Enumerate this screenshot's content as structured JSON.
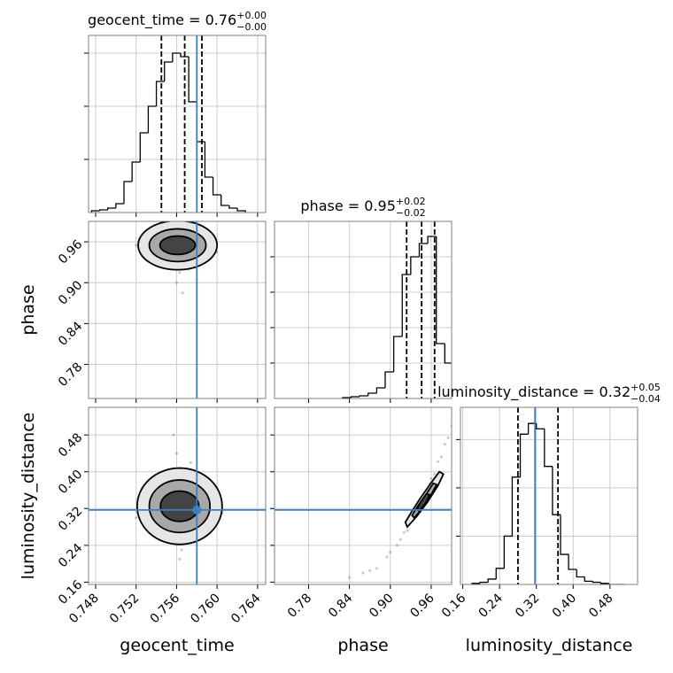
{
  "chart_data": {
    "type": "corner",
    "truth_color": "#3f7fbf",
    "hist_color": "#000000",
    "params": [
      {
        "name": "geocent_time",
        "lim": [
          0.7473,
          0.7648
        ],
        "ticks": [
          0.748,
          0.752,
          0.756,
          {
            "value": 0.76,
            "label": "0.760"
          },
          0.764
        ],
        "title": "geocent_time = 0.76",
        "upper": "+0.00",
        "lower": "−0.00",
        "quantiles": [
          0.7545,
          0.7568,
          0.7585
        ],
        "truth": 0.758,
        "bins": [
          0.7476,
          0.7484,
          0.7492,
          0.75,
          0.7508,
          0.7516,
          0.7524,
          0.7532,
          0.754,
          0.7548,
          0.7556,
          0.7564,
          0.7572,
          0.758,
          0.7588,
          0.7596,
          0.7604,
          0.7612,
          0.762,
          0.7628
        ],
        "counts": [
          2,
          3,
          5,
          10,
          35,
          57,
          90,
          120,
          148,
          170,
          180,
          176,
          125,
          80,
          40,
          20,
          8,
          5,
          2
        ],
        "hist_ylim": [
          0,
          200
        ],
        "hist_ticks": [
          60,
          120,
          180
        ]
      },
      {
        "name": "phase",
        "lim": [
          0.73,
          0.99
        ],
        "ticks": [
          0.78,
          0.84,
          {
            "value": 0.9,
            "label": "0.90"
          },
          0.96
        ],
        "title": "phase = 0.95",
        "upper": "+0.02",
        "lower": "−0.02",
        "quantiles": [
          0.924,
          0.946,
          0.965
        ],
        "bins": [
          0.83,
          0.8425,
          0.855,
          0.8675,
          0.88,
          0.8925,
          0.905,
          0.9175,
          0.93,
          0.9425,
          0.955,
          0.9675,
          0.98,
          0.9925,
          1.005
        ],
        "counts": [
          1,
          2,
          3,
          6,
          12,
          30,
          70,
          140,
          160,
          175,
          183,
          62,
          40,
          5
        ],
        "hist_ylim": [
          0,
          200
        ],
        "hist_ticks": [
          40,
          80,
          120,
          160
        ]
      },
      {
        "name": "luminosity_distance",
        "lim": [
          0.155,
          0.54
        ],
        "ticks": [
          0.16,
          0.24,
          0.32,
          {
            "value": 0.4,
            "label": "0.40"
          },
          0.48
        ],
        "title": "luminosity_distance = 0.32",
        "upper": "+0.05",
        "lower": "−0.04",
        "quantiles": [
          0.28,
          0.367
        ],
        "truth": 0.317,
        "bins": [
          0.18,
          0.1975,
          0.215,
          0.2325,
          0.25,
          0.2675,
          0.285,
          0.3025,
          0.32,
          0.3375,
          0.355,
          0.3725,
          0.39,
          0.4075,
          0.425,
          0.4425,
          0.46,
          0.4775,
          0.495,
          0.5125
        ],
        "counts": [
          1,
          2,
          5,
          15,
          45,
          100,
          140,
          150,
          145,
          110,
          65,
          28,
          14,
          7,
          3,
          2,
          1,
          0,
          0
        ],
        "hist_ylim": [
          0,
          165
        ],
        "hist_ticks": [
          45,
          90,
          135
        ]
      }
    ],
    "pairs": [
      {
        "x": [
          0.7535,
          0.7542,
          0.755,
          0.7556,
          0.756,
          0.7565,
          0.757,
          0.7575,
          0.7582,
          0.759,
          0.7548,
          0.7572,
          0.756,
          0.7555,
          0.7585,
          0.753,
          0.7595,
          0.7566,
          0.7552,
          0.7578,
          0.752,
          0.76,
          0.7563,
          0.7558,
          0.7569
        ],
        "y": [
          0.958,
          0.945,
          0.965,
          0.93,
          0.97,
          0.95,
          0.94,
          0.962,
          0.952,
          0.948,
          0.975,
          0.92,
          0.9,
          0.955,
          0.935,
          0.95,
          0.96,
          0.885,
          0.942,
          0.968,
          0.955,
          0.945,
          0.915,
          0.978,
          0.958
        ],
        "ellipses": [
          {
            "x": 0.7561,
            "y": 0.955,
            "rx": 0.0039,
            "ry": 0.036
          },
          {
            "x": 0.7561,
            "y": 0.955,
            "rx": 0.0028,
            "ry": 0.024
          },
          {
            "x": 0.7561,
            "y": 0.955,
            "rx": 0.00175,
            "ry": 0.0135
          }
        ]
      },
      {
        "x": [
          0.754,
          0.7548,
          0.7556,
          0.7562,
          0.7568,
          0.7575,
          0.7583,
          0.759,
          0.7552,
          0.7571,
          0.756,
          0.753,
          0.7598,
          0.7565,
          0.7545,
          0.7579,
          0.7557,
          0.7585,
          0.752,
          0.7605,
          0.7563,
          0.755,
          0.7574,
          0.7567,
          0.7559
        ],
        "y": [
          0.32,
          0.3,
          0.35,
          0.28,
          0.33,
          0.36,
          0.31,
          0.29,
          0.4,
          0.25,
          0.44,
          0.33,
          0.32,
          0.23,
          0.37,
          0.27,
          0.48,
          0.34,
          0.3,
          0.31,
          0.21,
          0.38,
          0.42,
          0.3,
          0.33
        ],
        "ellipses": [
          {
            "x": 0.7563,
            "y": 0.325,
            "rx": 0.0042,
            "ry": 0.083
          },
          {
            "x": 0.7563,
            "y": 0.325,
            "rx": 0.003,
            "ry": 0.057
          },
          {
            "x": 0.7563,
            "y": 0.325,
            "rx": 0.0019,
            "ry": 0.033
          }
        ]
      },
      {
        "x": [
          0.84,
          0.86,
          0.88,
          0.9,
          0.91,
          0.92,
          0.925,
          0.93,
          0.935,
          0.94,
          0.945,
          0.95,
          0.955,
          0.96,
          0.965,
          0.97,
          0.975,
          0.98,
          0.985,
          0.99,
          0.87,
          0.895,
          0.915,
          0.942,
          0.958
        ],
        "y": [
          0.17,
          0.18,
          0.19,
          0.225,
          0.24,
          0.268,
          0.272,
          0.292,
          0.3,
          0.32,
          0.326,
          0.35,
          0.36,
          0.385,
          0.395,
          0.422,
          0.432,
          0.46,
          0.474,
          0.5,
          0.185,
          0.215,
          0.253,
          0.322,
          0.374
        ],
        "polygons": [
          [
            [
              0.925,
              0.28
            ],
            [
              0.94,
              0.305
            ],
            [
              0.955,
              0.335
            ],
            [
              0.97,
              0.37
            ],
            [
              0.978,
              0.395
            ],
            [
              0.972,
              0.4
            ],
            [
              0.958,
              0.372
            ],
            [
              0.943,
              0.34
            ],
            [
              0.93,
              0.31
            ],
            [
              0.922,
              0.29
            ]
          ],
          [
            [
              0.935,
              0.3
            ],
            [
              0.948,
              0.322
            ],
            [
              0.96,
              0.35
            ],
            [
              0.968,
              0.372
            ],
            [
              0.963,
              0.375
            ],
            [
              0.952,
              0.35
            ],
            [
              0.94,
              0.325
            ],
            [
              0.932,
              0.305
            ]
          ],
          [
            [
              0.942,
              0.315
            ],
            [
              0.952,
              0.332
            ],
            [
              0.958,
              0.35
            ],
            [
              0.953,
              0.352
            ],
            [
              0.944,
              0.333
            ],
            [
              0.939,
              0.318
            ]
          ]
        ]
      }
    ]
  }
}
